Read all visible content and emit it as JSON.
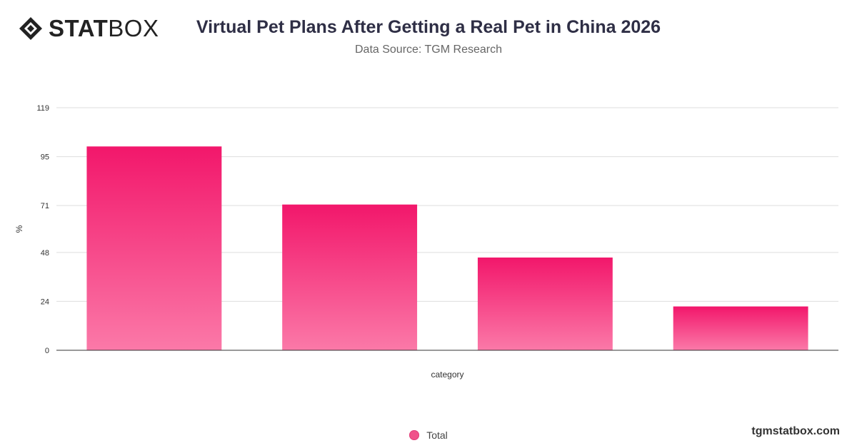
{
  "brand": {
    "logo_bold": "STAT",
    "logo_light": "BOX",
    "site": "tgmstatbox.com"
  },
  "header": {
    "title": "Virtual Pet Plans After Getting a Real Pet in China 2026",
    "subtitle": "Data Source: TGM Research"
  },
  "colors": {
    "bar_top": "#f2176b",
    "bar_bottom": "#fb79a8",
    "grid": "#dddddd",
    "axis": "#333333"
  },
  "chart_data": {
    "type": "bar",
    "title": "Virtual Pet Plans After Getting a Real Pet in China 2026",
    "subtitle": "Data Source: TGM Research",
    "xlabel": "category",
    "ylabel": "%",
    "categories": [
      "",
      "",
      "",
      ""
    ],
    "series": [
      {
        "name": "Total",
        "values": [
          100,
          71.5,
          45.5,
          21.5
        ]
      }
    ],
    "yticks": [
      0,
      24,
      48,
      71,
      95,
      119
    ],
    "ylim": [
      0,
      119
    ],
    "grid": true,
    "legend": "bottom"
  }
}
